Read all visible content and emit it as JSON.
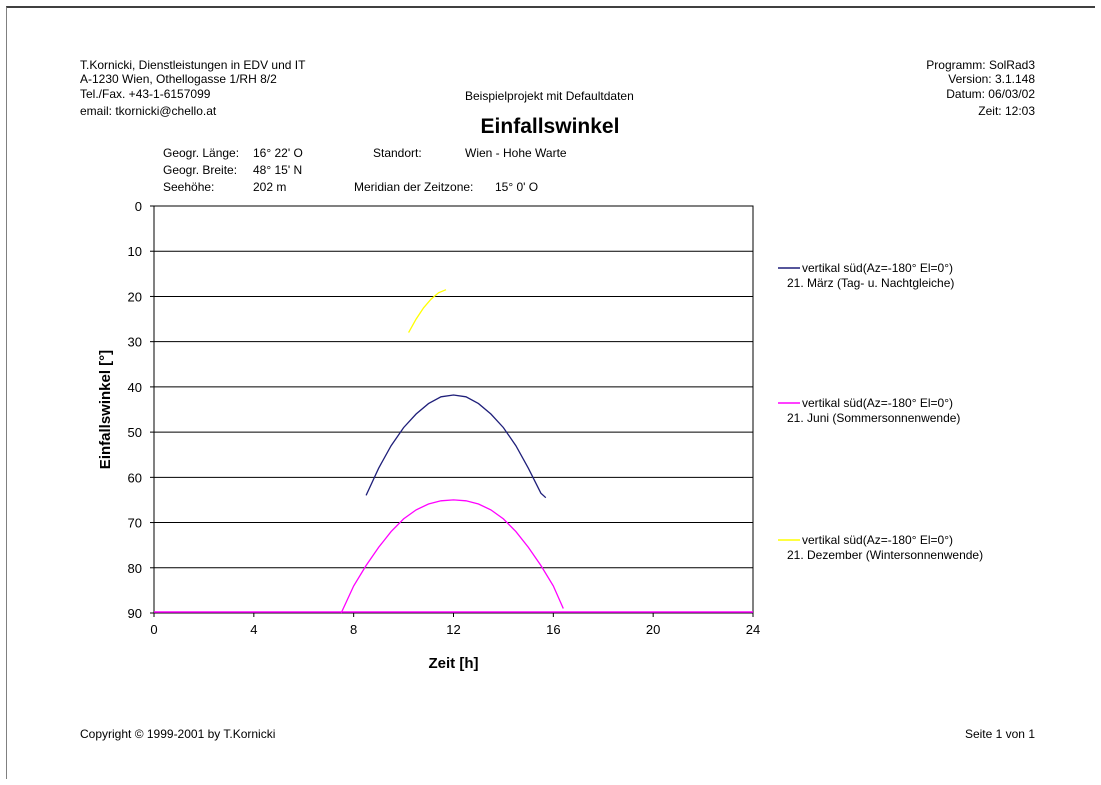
{
  "header": {
    "company_lines": [
      "T.Kornicki, Dienstleistungen in EDV und IT",
      "A-1230 Wien, Othellogasse 1/RH 8/2",
      "Tel./Fax. +43-1-6157099",
      "email: tkornicki@chello.at"
    ],
    "program_lines": [
      "Programm: SolRad3",
      "Version: 3.1.148",
      "Datum: 06/03/02",
      "Zeit: 12:03"
    ],
    "project": "Beispielprojekt mit Defaultdaten",
    "title": "Einfallswinkel"
  },
  "location": {
    "laenge_label": "Geogr. Länge:",
    "laenge_value": "16° 22' O",
    "breite_label": "Geogr. Breite:",
    "breite_value": "48° 15' N",
    "seehoehe_label": "Seehöhe:",
    "seehoehe_value": "202 m",
    "standort_label": "Standort:",
    "standort_value": "Wien - Hohe Warte",
    "meridian_label": "Meridian der Zeitzone:",
    "meridian_value": "15° 0' O"
  },
  "footer": {
    "copyright": "Copyright © 1999-2001 by T.Kornicki",
    "page": "Seite 1 von 1"
  },
  "chart_data": {
    "type": "line",
    "title": "Einfallswinkel",
    "xlabel": "Zeit [h]",
    "ylabel": "Einfallswinkel [°]",
    "xlim": [
      0,
      24
    ],
    "ylim": [
      0,
      90
    ],
    "y_inverted": true,
    "x_ticks": [
      0,
      4,
      8,
      12,
      16,
      20,
      24
    ],
    "y_ticks": [
      0,
      10,
      20,
      30,
      40,
      50,
      60,
      70,
      80,
      90
    ],
    "grid": "horizontal",
    "legend_position": "right",
    "series": [
      {
        "name": "vertikal süd(Az=-180° El=0°)",
        "subtitle": "21. März (Tag- u. Nachtgleiche)",
        "color": "#1f1f7a",
        "x": [
          8.5,
          9,
          9.5,
          10,
          10.5,
          11,
          11.5,
          12,
          12.5,
          13,
          13.5,
          14,
          14.5,
          15,
          15.5,
          15.7
        ],
        "y": [
          64,
          58,
          53,
          49,
          46,
          43.7,
          42.2,
          41.8,
          42.2,
          43.7,
          46,
          49,
          53,
          58,
          63.5,
          64.5
        ]
      },
      {
        "name": "vertikal süd(Az=-180° El=0°)",
        "subtitle": "21. Juni (Sommersonnenwende)",
        "color": "#ff00ff",
        "x": [
          7.5,
          8,
          8.5,
          9,
          9.5,
          10,
          10.5,
          11,
          11.5,
          12,
          12.5,
          13,
          13.5,
          14,
          14.5,
          15,
          15.5,
          16,
          16.4
        ],
        "y": [
          90,
          84,
          79.5,
          75.5,
          72,
          69.2,
          67.2,
          65.9,
          65.2,
          65,
          65.2,
          65.9,
          67.2,
          69.2,
          72,
          75.5,
          79.5,
          84,
          89
        ],
        "baseline_y": 90
      },
      {
        "name": "vertikal süd(Az=-180° El=0°)",
        "subtitle": "21. Dezember (Wintersonnenwende)",
        "color": "#ffff00",
        "x": [
          10.2,
          10.5,
          10.8,
          11.1,
          11.4,
          11.7
        ],
        "y": [
          28,
          25,
          22.5,
          20.6,
          19.2,
          18.5
        ]
      }
    ]
  }
}
